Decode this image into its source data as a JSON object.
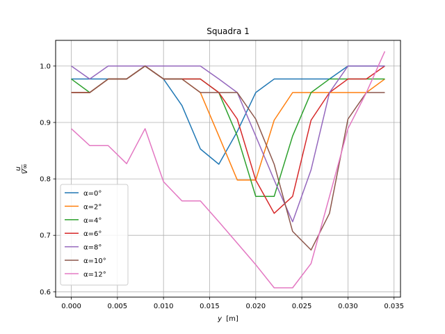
{
  "chart_data": {
    "type": "line",
    "title": "Squadra 1",
    "xlabel_var": "y",
    "xlabel_unit": "[m]",
    "ylabel_num": "u",
    "ylabel_den": "V∞",
    "xlim": [
      -0.0017,
      0.0357
    ],
    "ylim": [
      0.5905,
      1.0455
    ],
    "xticks": [
      0.0,
      0.005,
      0.01,
      0.015,
      0.02,
      0.025,
      0.03,
      0.035
    ],
    "xtick_labels": [
      "0.000",
      "0.005",
      "0.010",
      "0.015",
      "0.020",
      "0.025",
      "0.030",
      "0.035"
    ],
    "yticks": [
      0.6,
      0.7,
      0.8,
      0.9,
      1.0
    ],
    "ytick_labels": [
      "0.6",
      "0.7",
      "0.8",
      "0.9",
      "1.0"
    ],
    "grid": true,
    "legend_position": "lower-left",
    "series": [
      {
        "name": "α=0°",
        "color": "#1f77b4",
        "x": [
          0,
          0.002,
          0.004,
          0.006,
          0.008,
          0.01,
          0.012,
          0.014,
          0.016,
          0.018,
          0.02,
          0.022,
          0.024,
          0.026,
          0.028,
          0.03,
          0.032,
          0.034
        ],
        "y": [
          0.977,
          0.977,
          0.977,
          0.977,
          1.0,
          0.977,
          0.93,
          0.853,
          0.826,
          0.884,
          0.953,
          0.977,
          0.977,
          0.977,
          0.977,
          1.0,
          1.0,
          1.0
        ]
      },
      {
        "name": "α=2°",
        "color": "#ff7f0e",
        "x": [
          0,
          0.002,
          0.004,
          0.006,
          0.008,
          0.01,
          0.012,
          0.014,
          0.016,
          0.018,
          0.02,
          0.022,
          0.024,
          0.026,
          0.028,
          0.03,
          0.032,
          0.034
        ],
        "y": [
          0.953,
          0.953,
          0.977,
          0.977,
          1.0,
          0.977,
          0.977,
          0.953,
          0.876,
          0.798,
          0.798,
          0.904,
          0.953,
          0.953,
          0.953,
          0.953,
          0.953,
          0.977
        ]
      },
      {
        "name": "α=4°",
        "color": "#2ca02c",
        "x": [
          0,
          0.002,
          0.004,
          0.006,
          0.008,
          0.01,
          0.012,
          0.014,
          0.016,
          0.018,
          0.02,
          0.022,
          0.024,
          0.026,
          0.028,
          0.03,
          0.032,
          0.034
        ],
        "y": [
          0.977,
          0.953,
          0.977,
          0.977,
          1.0,
          0.977,
          0.977,
          0.977,
          0.953,
          0.876,
          0.769,
          0.769,
          0.876,
          0.953,
          0.977,
          0.977,
          0.977,
          0.977
        ]
      },
      {
        "name": "α=6°",
        "color": "#d62728",
        "x": [
          0,
          0.002,
          0.004,
          0.006,
          0.008,
          0.01,
          0.012,
          0.014,
          0.016,
          0.018,
          0.02,
          0.022,
          0.024,
          0.026,
          0.028,
          0.03,
          0.032,
          0.034
        ],
        "y": [
          0.953,
          0.953,
          0.977,
          0.977,
          1.0,
          0.977,
          0.977,
          0.977,
          0.953,
          0.906,
          0.798,
          0.739,
          0.769,
          0.904,
          0.953,
          0.977,
          0.977,
          1.0
        ]
      },
      {
        "name": "α=8°",
        "color": "#9467bd",
        "x": [
          0,
          0.002,
          0.004,
          0.006,
          0.008,
          0.01,
          0.012,
          0.014,
          0.016,
          0.018,
          0.02,
          0.022,
          0.024,
          0.026,
          0.028,
          0.03,
          0.032,
          0.034
        ],
        "y": [
          1.0,
          0.977,
          1.0,
          1.0,
          1.0,
          1.0,
          1.0,
          1.0,
          0.977,
          0.953,
          0.876,
          0.798,
          0.724,
          0.816,
          0.953,
          1.0,
          1.0,
          1.0
        ]
      },
      {
        "name": "α=10°",
        "color": "#8c564b",
        "x": [
          0,
          0.002,
          0.004,
          0.006,
          0.008,
          0.01,
          0.012,
          0.014,
          0.016,
          0.018,
          0.02,
          0.022,
          0.024,
          0.026,
          0.028,
          0.03,
          0.032,
          0.034
        ],
        "y": [
          0.953,
          0.953,
          0.977,
          0.977,
          1.0,
          0.977,
          0.977,
          0.953,
          0.953,
          0.953,
          0.906,
          0.826,
          0.707,
          0.674,
          0.739,
          0.906,
          0.953,
          0.953
        ]
      },
      {
        "name": "α=12°",
        "color": "#e377c2",
        "x": [
          0,
          0.002,
          0.004,
          0.006,
          0.008,
          0.01,
          0.012,
          0.014,
          0.016,
          0.018,
          0.02,
          0.022,
          0.024,
          0.026,
          0.028,
          0.03,
          0.032,
          0.034
        ],
        "y": [
          0.889,
          0.859,
          0.859,
          0.827,
          0.889,
          0.795,
          0.761,
          0.761,
          0.724,
          0.686,
          0.648,
          0.607,
          0.607,
          0.65,
          0.769,
          0.889,
          0.953,
          1.026
        ]
      }
    ]
  }
}
